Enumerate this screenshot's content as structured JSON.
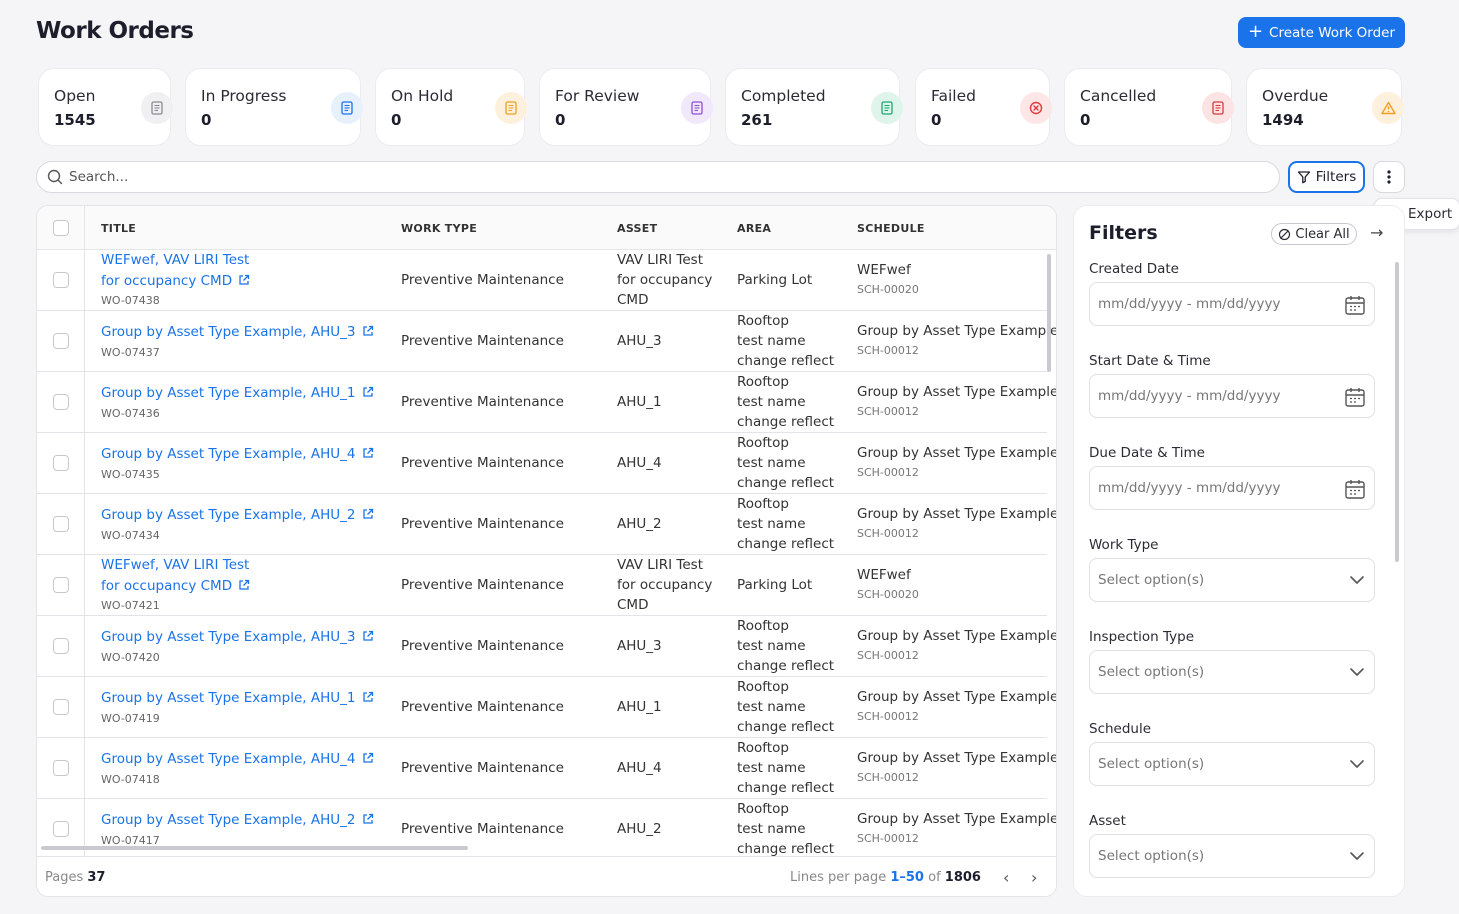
{
  "page": {
    "title": "Work Orders",
    "create_label": "Create Work Order"
  },
  "stats": [
    {
      "label": "Open",
      "value": "1545",
      "color": "#8a8a94",
      "bg": "#f0f0f2"
    },
    {
      "label": "In Progress",
      "value": "0",
      "color": "#1a73e8",
      "bg": "#e7f0fd"
    },
    {
      "label": "On Hold",
      "value": "0",
      "color": "#f0a020",
      "bg": "#fdf1dd"
    },
    {
      "label": "For Review",
      "value": "0",
      "color": "#8e4fd6",
      "bg": "#f1e8fb"
    },
    {
      "label": "Completed",
      "value": "261",
      "color": "#1ea672",
      "bg": "#dff5ec"
    },
    {
      "label": "Failed",
      "value": "0",
      "color": "#e23a3a",
      "bg": "#fde6e6"
    },
    {
      "label": "Cancelled",
      "value": "0",
      "color": "#d93a3a",
      "bg": "#fce4e4"
    },
    {
      "label": "Overdue",
      "value": "1494",
      "color": "#f0a020",
      "bg": "#fdf1dd"
    }
  ],
  "toolbar": {
    "search_placeholder": "Search...",
    "filters_label": "Filters",
    "export_label": "Export"
  },
  "table": {
    "headers": {
      "title": "TITLE",
      "work_type": "WORK TYPE",
      "asset": "ASSET",
      "area": "AREA",
      "schedule": "SCHEDULE"
    },
    "rows": [
      {
        "title_l1": "WEFwef, VAV LIRI Test",
        "title_l2": "for occupancy CMD",
        "wo": "WO-07438",
        "work_type": "Preventive Maintenance",
        "asset": [
          "VAV LIRI Test",
          "for occupancy",
          "CMD"
        ],
        "area": [
          "Parking Lot"
        ],
        "schedule": "WEFwef",
        "sch_id": "SCH-00020"
      },
      {
        "title_l1": "Group by Asset Type Example, AHU_3",
        "title_l2": "",
        "wo": "WO-07437",
        "work_type": "Preventive Maintenance",
        "asset": [
          "AHU_3"
        ],
        "area": [
          "Rooftop",
          "test name",
          "change reflect"
        ],
        "schedule": "Group by Asset Type Example",
        "sch_id": "SCH-00012"
      },
      {
        "title_l1": "Group by Asset Type Example, AHU_1",
        "title_l2": "",
        "wo": "WO-07436",
        "work_type": "Preventive Maintenance",
        "asset": [
          "AHU_1"
        ],
        "area": [
          "Rooftop",
          "test name",
          "change reflect"
        ],
        "schedule": "Group by Asset Type Example",
        "sch_id": "SCH-00012"
      },
      {
        "title_l1": "Group by Asset Type Example, AHU_4",
        "title_l2": "",
        "wo": "WO-07435",
        "work_type": "Preventive Maintenance",
        "asset": [
          "AHU_4"
        ],
        "area": [
          "Rooftop",
          "test name",
          "change reflect"
        ],
        "schedule": "Group by Asset Type Example",
        "sch_id": "SCH-00012"
      },
      {
        "title_l1": "Group by Asset Type Example, AHU_2",
        "title_l2": "",
        "wo": "WO-07434",
        "work_type": "Preventive Maintenance",
        "asset": [
          "AHU_2"
        ],
        "area": [
          "Rooftop",
          "test name",
          "change reflect"
        ],
        "schedule": "Group by Asset Type Example",
        "sch_id": "SCH-00012"
      },
      {
        "title_l1": "WEFwef, VAV LIRI Test",
        "title_l2": "for occupancy CMD",
        "wo": "WO-07421",
        "work_type": "Preventive Maintenance",
        "asset": [
          "VAV LIRI Test",
          "for occupancy",
          "CMD"
        ],
        "area": [
          "Parking Lot"
        ],
        "schedule": "WEFwef",
        "sch_id": "SCH-00020"
      },
      {
        "title_l1": "Group by Asset Type Example, AHU_3",
        "title_l2": "",
        "wo": "WO-07420",
        "work_type": "Preventive Maintenance",
        "asset": [
          "AHU_3"
        ],
        "area": [
          "Rooftop",
          "test name",
          "change reflect"
        ],
        "schedule": "Group by Asset Type Example",
        "sch_id": "SCH-00012"
      },
      {
        "title_l1": "Group by Asset Type Example, AHU_1",
        "title_l2": "",
        "wo": "WO-07419",
        "work_type": "Preventive Maintenance",
        "asset": [
          "AHU_1"
        ],
        "area": [
          "Rooftop",
          "test name",
          "change reflect"
        ],
        "schedule": "Group by Asset Type Example",
        "sch_id": "SCH-00012"
      },
      {
        "title_l1": "Group by Asset Type Example, AHU_4",
        "title_l2": "",
        "wo": "WO-07418",
        "work_type": "Preventive Maintenance",
        "asset": [
          "AHU_4"
        ],
        "area": [
          "Rooftop",
          "test name",
          "change reflect"
        ],
        "schedule": "Group by Asset Type Example",
        "sch_id": "SCH-00012"
      },
      {
        "title_l1": "Group by Asset Type Example, AHU_2",
        "title_l2": "",
        "wo": "WO-07417",
        "work_type": "Preventive Maintenance",
        "asset": [
          "AHU_2"
        ],
        "area": [
          "Rooftop",
          "test name",
          "change reflect"
        ],
        "schedule": "Group by Asset Type Example",
        "sch_id": "SCH-00012"
      }
    ]
  },
  "footer": {
    "pages_label": "Pages",
    "pages_value": "37",
    "lines_label": "Lines per page",
    "range": "1–50",
    "of_label": "of",
    "total": "1806"
  },
  "filters": {
    "title": "Filters",
    "clear_all": "Clear All",
    "fields": [
      {
        "label": "Created Date",
        "placeholder": "mm/dd/yyyy - mm/dd/yyyy",
        "kind": "date"
      },
      {
        "label": "Start Date & Time",
        "placeholder": "mm/dd/yyyy - mm/dd/yyyy",
        "kind": "date"
      },
      {
        "label": "Due Date & Time",
        "placeholder": "mm/dd/yyyy - mm/dd/yyyy",
        "kind": "date"
      },
      {
        "label": "Work Type",
        "placeholder": "Select option(s)",
        "kind": "select"
      },
      {
        "label": "Inspection Type",
        "placeholder": "Select option(s)",
        "kind": "select"
      },
      {
        "label": "Schedule",
        "placeholder": "Select option(s)",
        "kind": "select"
      },
      {
        "label": "Asset",
        "placeholder": "Select option(s)",
        "kind": "select"
      }
    ]
  },
  "colors": {
    "accent": "#1a73e8"
  }
}
